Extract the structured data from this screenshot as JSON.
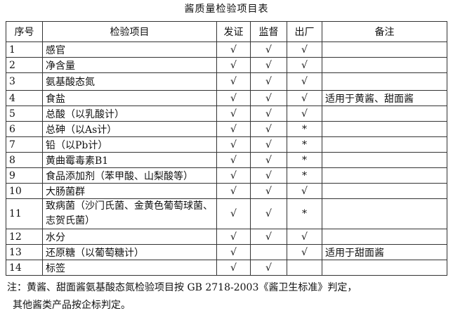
{
  "title": "酱质量检验项目表",
  "headers": [
    "序号",
    "检验项目",
    "发证",
    "监督",
    "出厂",
    "备注"
  ],
  "rows": [
    {
      "no": "1",
      "item": "感官",
      "fz": "√",
      "jd": "√",
      "cc": "√",
      "note": ""
    },
    {
      "no": "2",
      "item": "净含量",
      "fz": "√",
      "jd": "√",
      "cc": "√",
      "note": ""
    },
    {
      "no": "3",
      "item": "氨基酸态氮",
      "fz": "√",
      "jd": "√",
      "cc": "√",
      "note": ""
    },
    {
      "no": "4",
      "item": "食盐",
      "fz": "√",
      "jd": "√",
      "cc": "√",
      "note": "适用于黄酱、甜面酱"
    },
    {
      "no": "5",
      "item": "总酸（以乳酸计）",
      "fz": "√",
      "jd": "√",
      "cc": "√",
      "note": ""
    },
    {
      "no": "6",
      "item": "总砷（以As计）",
      "fz": "√",
      "jd": "√",
      "cc": "*",
      "note": ""
    },
    {
      "no": "7",
      "item": "铅（以Pb计）",
      "fz": "√",
      "jd": "√",
      "cc": "*",
      "note": ""
    },
    {
      "no": "8",
      "item": "黄曲霉毒素B1",
      "fz": "√",
      "jd": "√",
      "cc": "*",
      "note": ""
    },
    {
      "no": "9",
      "item": "食品添加剂（苯甲酸、山梨酸等）",
      "fz": "√",
      "jd": "√",
      "cc": "*",
      "note": ""
    },
    {
      "no": "10",
      "item": "大肠菌群",
      "fz": "√",
      "jd": "√",
      "cc": "√",
      "note": ""
    },
    {
      "no": "11",
      "item": "致病菌（沙门氏菌、金黄色葡萄球菌、志贺氏菌）",
      "fz": "√",
      "jd": "√",
      "cc": "*",
      "note": ""
    },
    {
      "no": "12",
      "item": "水分",
      "fz": "√",
      "jd": "√",
      "cc": "√",
      "note": ""
    },
    {
      "no": "13",
      "item": "还原糖（以葡萄糖计）",
      "fz": "√",
      "jd": "",
      "cc": "√",
      "note": "适用于甜面酱"
    },
    {
      "no": "14",
      "item": "标签",
      "fz": "√",
      "jd": "√",
      "cc": "",
      "note": ""
    }
  ],
  "footnote": {
    "line1": "注：黄酱、甜面酱氨基酸态氮检验项目按 GB 2718-2003《酱卫生标准》判定，",
    "line2": "其他酱类产品按企标判定。"
  }
}
